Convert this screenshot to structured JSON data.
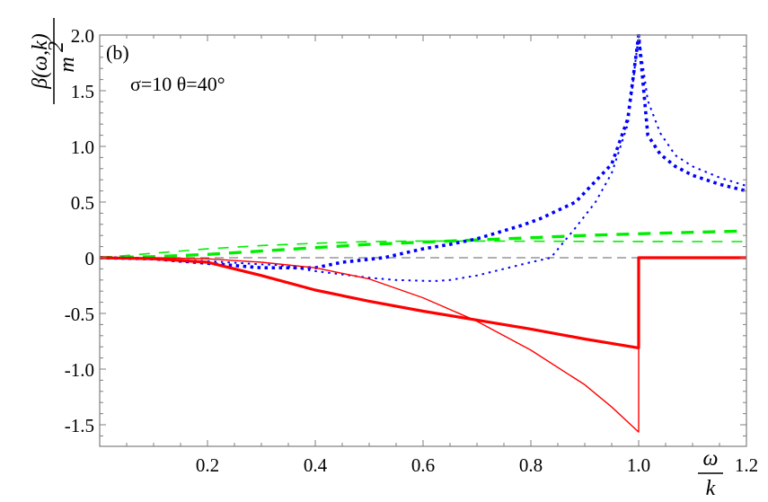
{
  "chart_data": {
    "type": "line",
    "title": "",
    "panel_label": "(b)",
    "annotation": "σ=10  θ=40°",
    "xlabel": "ω/k",
    "xlabel_num": "ω",
    "xlabel_den": "k",
    "ylabel": "β(ω,k)/m²",
    "ylabel_num": "β(ω,k)",
    "ylabel_den": "m",
    "ylabel_den_sup": "2",
    "xlim": [
      0,
      1.2
    ],
    "ylim": [
      -1.7,
      2.0
    ],
    "xticks": [
      "0.2",
      "0.4",
      "0.6",
      "0.8",
      "1.0",
      "1.2"
    ],
    "xtick_values": [
      0.2,
      0.4,
      0.6,
      0.8,
      1.0,
      1.2
    ],
    "yticks": [
      "2.0",
      "1.5",
      "1.0",
      "0.5",
      "0",
      "-0.5",
      "-1.0",
      "-1.5"
    ],
    "ytick_values": [
      2.0,
      1.5,
      1.0,
      0.5,
      0,
      -0.5,
      -1.0,
      -1.5
    ],
    "grid": false,
    "legend": null,
    "series": [
      {
        "name": "red-thick-solid",
        "color": "#ff0000",
        "style": "solid-thick",
        "x": [
          0,
          0.1,
          0.2,
          0.3,
          0.4,
          0.5,
          0.6,
          0.7,
          0.8,
          0.9,
          1.0,
          1.0,
          1.2
        ],
        "y": [
          0,
          -0.01,
          -0.04,
          -0.16,
          -0.29,
          -0.39,
          -0.48,
          -0.56,
          -0.64,
          -0.73,
          -0.81,
          0,
          0
        ]
      },
      {
        "name": "red-thin-solid",
        "color": "#ff0000",
        "style": "solid-thin",
        "x": [
          0,
          0.1,
          0.2,
          0.3,
          0.4,
          0.5,
          0.6,
          0.7,
          0.8,
          0.9,
          0.95,
          1.0,
          1.0,
          1.2
        ],
        "y": [
          0,
          0.0,
          -0.01,
          -0.04,
          -0.09,
          -0.19,
          -0.36,
          -0.57,
          -0.83,
          -1.14,
          -1.34,
          -1.565,
          0,
          0
        ]
      },
      {
        "name": "blue-thick-dotted",
        "color": "#0000ff",
        "style": "dotted-thick",
        "x": [
          0,
          0.1,
          0.2,
          0.3,
          0.4,
          0.45,
          0.527,
          0.6,
          0.65,
          0.7,
          0.783,
          0.817,
          0.883,
          0.95,
          0.98,
          1.0,
          1.017,
          1.04,
          1.068,
          1.1,
          1.15,
          1.2
        ],
        "y": [
          0,
          -0.01,
          -0.05,
          -0.09,
          -0.09,
          -0.04,
          0.0,
          0.08,
          0.12,
          0.17,
          0.29,
          0.35,
          0.5,
          0.84,
          1.25,
          2.0,
          1.1,
          0.93,
          0.82,
          0.74,
          0.66,
          0.6
        ]
      },
      {
        "name": "blue-thin-dotted",
        "color": "#0000ff",
        "style": "dotted-thin",
        "x": [
          0,
          0.1,
          0.2,
          0.3,
          0.33,
          0.4,
          0.45,
          0.5,
          0.55,
          0.62,
          0.65,
          0.7,
          0.75,
          0.8,
          0.837,
          0.883,
          0.92,
          0.95,
          0.98,
          1.0,
          1.017,
          1.04,
          1.068,
          1.1,
          1.15,
          1.2
        ],
        "y": [
          0,
          -0.01,
          -0.03,
          -0.06,
          -0.065,
          -0.12,
          -0.15,
          -0.18,
          -0.2,
          -0.21,
          -0.2,
          -0.16,
          -0.1,
          -0.04,
          0.0,
          0.27,
          0.5,
          0.76,
          1.2,
          2.0,
          1.41,
          1.12,
          0.92,
          0.82,
          0.72,
          0.645
        ]
      },
      {
        "name": "green-thick-dashed",
        "color": "#00ee00",
        "style": "dashed-thick",
        "x": [
          0,
          0.1,
          0.2,
          0.3,
          0.4,
          0.5,
          0.6,
          0.7,
          0.8,
          0.9,
          1.0,
          1.1,
          1.2
        ],
        "y": [
          0,
          0.01,
          0.03,
          0.06,
          0.09,
          0.12,
          0.14,
          0.16,
          0.18,
          0.2,
          0.215,
          0.228,
          0.24
        ]
      },
      {
        "name": "green-thin-dashed",
        "color": "#00ee00",
        "style": "dashed-thin",
        "x": [
          0,
          0.1,
          0.2,
          0.3,
          0.4,
          0.5,
          0.6,
          0.7,
          0.8,
          0.9,
          1.0,
          1.1,
          1.2
        ],
        "y": [
          0,
          0.04,
          0.08,
          0.11,
          0.13,
          0.145,
          0.15,
          0.15,
          0.148,
          0.147,
          0.146,
          0.145,
          0.145
        ]
      },
      {
        "name": "zero-reference",
        "color": "#808080",
        "style": "dashed-thin",
        "x": [
          0,
          1.2
        ],
        "y": [
          0,
          0
        ]
      }
    ]
  }
}
